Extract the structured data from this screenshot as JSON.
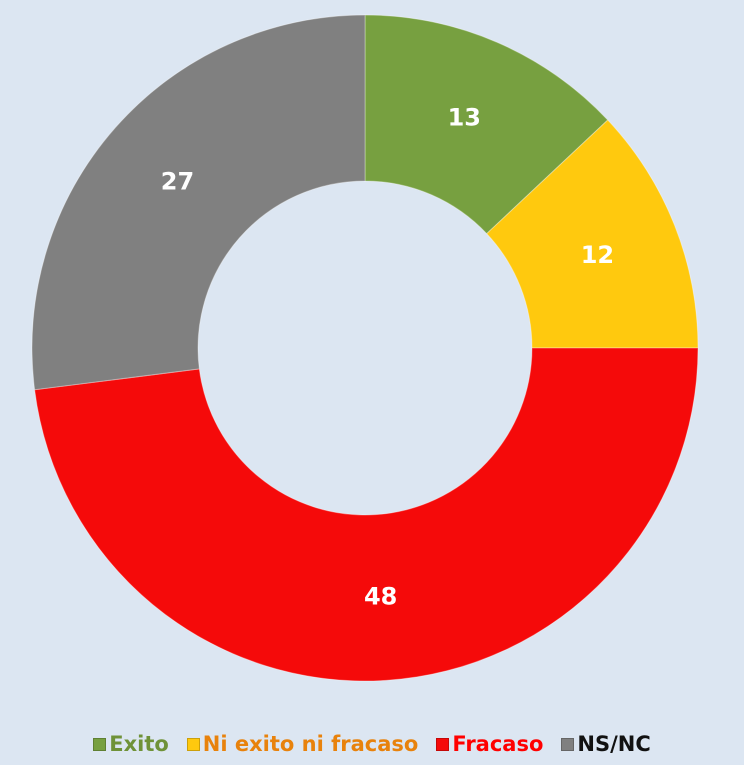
{
  "chart_data": {
    "type": "donut",
    "categories": [
      "Exito",
      "Ni exito ni fracaso",
      "Fracaso",
      "NS/NC"
    ],
    "values": [
      13,
      12,
      48,
      27
    ],
    "colors": [
      "#77a040",
      "#ffc90e",
      "#f50a0a",
      "#808080"
    ],
    "legend_text_colors": [
      "#6f9238",
      "#e8820c",
      "#ff0000",
      "#111111"
    ],
    "legend": "bottom"
  }
}
